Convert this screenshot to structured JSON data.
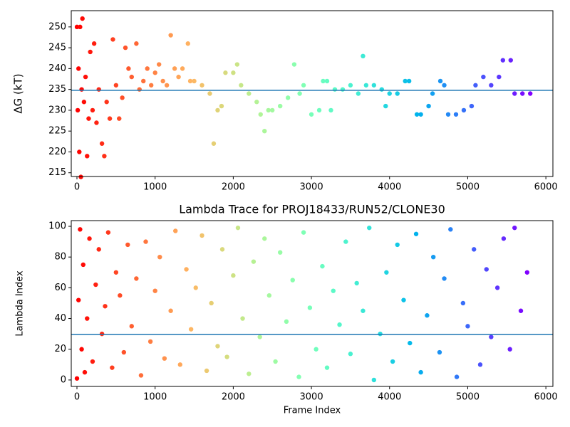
{
  "chart_data": [
    {
      "type": "scatter",
      "ylabel": "ΔG (kT)",
      "colormap": "rainbow_r",
      "xlim": [
        -73,
        6090
      ],
      "xticks": [
        0,
        1000,
        2000,
        3000,
        4000,
        5000,
        6000
      ],
      "ylim": [
        214.1,
        253.9
      ],
      "yticks": [
        215,
        220,
        225,
        230,
        235,
        240,
        245,
        250
      ],
      "hline": {
        "value": 234.8,
        "color": "#1f77b4"
      },
      "x": [
        0,
        10,
        20,
        30,
        40,
        50,
        60,
        70,
        90,
        110,
        130,
        150,
        170,
        200,
        220,
        250,
        280,
        320,
        350,
        380,
        420,
        460,
        500,
        540,
        580,
        620,
        660,
        700,
        760,
        800,
        850,
        900,
        950,
        1000,
        1050,
        1100,
        1150,
        1200,
        1250,
        1300,
        1350,
        1420,
        1450,
        1500,
        1600,
        1700,
        1750,
        1800,
        1850,
        1900,
        2000,
        2050,
        2100,
        2200,
        2300,
        2350,
        2400,
        2450,
        2500,
        2600,
        2700,
        2780,
        2850,
        2900,
        3000,
        3100,
        3150,
        3200,
        3250,
        3300,
        3400,
        3500,
        3600,
        3660,
        3700,
        3800,
        3900,
        3950,
        4000,
        4100,
        4200,
        4250,
        4350,
        4400,
        4500,
        4550,
        4650,
        4700,
        4750,
        4850,
        4950,
        5050,
        5100,
        5200,
        5300,
        5400,
        5450,
        5550,
        5600,
        5700,
        5800
      ],
      "values": [
        250,
        230,
        240,
        220,
        250,
        214,
        235,
        252,
        232,
        238,
        219,
        228,
        244,
        230,
        246,
        227,
        235,
        222,
        219,
        232,
        228,
        247,
        236,
        228,
        233,
        245,
        240,
        238,
        246,
        235,
        237,
        240,
        236,
        239,
        241,
        237,
        236,
        248,
        240,
        238,
        240,
        246,
        237,
        237,
        236,
        234,
        222,
        230,
        231,
        239,
        239,
        241,
        236,
        234,
        232,
        229,
        225,
        230,
        230,
        231,
        233,
        241,
        234,
        236,
        229,
        230,
        237,
        237,
        230,
        235,
        235,
        236,
        234,
        243,
        236,
        236,
        235,
        231,
        234,
        234,
        237,
        237,
        229,
        229,
        231,
        234,
        237,
        236,
        229,
        229,
        230,
        231,
        236,
        238,
        236,
        238,
        242,
        242,
        234,
        234,
        234
      ]
    },
    {
      "type": "scatter",
      "title": "Lambda Trace for PROJ18433/RUN52/CLONE30",
      "xlabel": "Frame Index",
      "ylabel": "Lambda Index",
      "colormap": "rainbow_r",
      "xlim": [
        -73,
        6090
      ],
      "xticks": [
        0,
        1000,
        2000,
        3000,
        4000,
        5000,
        6000
      ],
      "ylim": [
        -4.2,
        103.7
      ],
      "yticks": [
        0,
        20,
        40,
        60,
        80,
        100
      ],
      "hline": {
        "value": 29.6,
        "color": "#1f77b4"
      },
      "x": [
        0,
        20,
        40,
        60,
        80,
        100,
        130,
        160,
        200,
        240,
        280,
        320,
        360,
        400,
        450,
        500,
        550,
        600,
        650,
        700,
        760,
        820,
        880,
        940,
        1000,
        1060,
        1120,
        1200,
        1260,
        1320,
        1400,
        1460,
        1520,
        1600,
        1660,
        1720,
        1800,
        1860,
        1920,
        2000,
        2060,
        2120,
        2200,
        2260,
        2340,
        2400,
        2460,
        2540,
        2600,
        2680,
        2760,
        2840,
        2900,
        2980,
        3060,
        3140,
        3200,
        3280,
        3360,
        3440,
        3500,
        3580,
        3660,
        3740,
        3800,
        3880,
        3960,
        4040,
        4100,
        4180,
        4260,
        4340,
        4400,
        4480,
        4560,
        4640,
        4700,
        4780,
        4860,
        4940,
        5000,
        5080,
        5160,
        5240,
        5300,
        5380,
        5460,
        5540,
        5600,
        5680,
        5760
      ],
      "values": [
        1,
        52,
        98,
        20,
        75,
        5,
        40,
        92,
        12,
        62,
        85,
        30,
        48,
        96,
        8,
        70,
        55,
        18,
        88,
        35,
        66,
        3,
        90,
        25,
        58,
        80,
        14,
        45,
        97,
        10,
        72,
        33,
        60,
        94,
        6,
        50,
        22,
        85,
        15,
        68,
        99,
        40,
        4,
        77,
        28,
        92,
        55,
        12,
        83,
        38,
        65,
        2,
        96,
        47,
        20,
        74,
        8,
        58,
        36,
        90,
        17,
        63,
        45,
        99,
        0,
        30,
        70,
        12,
        88,
        52,
        24,
        95,
        5,
        42,
        80,
        18,
        66,
        98,
        2,
        50,
        35,
        85,
        10,
        72,
        28,
        60,
        92,
        20,
        99,
        45,
        70
      ]
    }
  ]
}
